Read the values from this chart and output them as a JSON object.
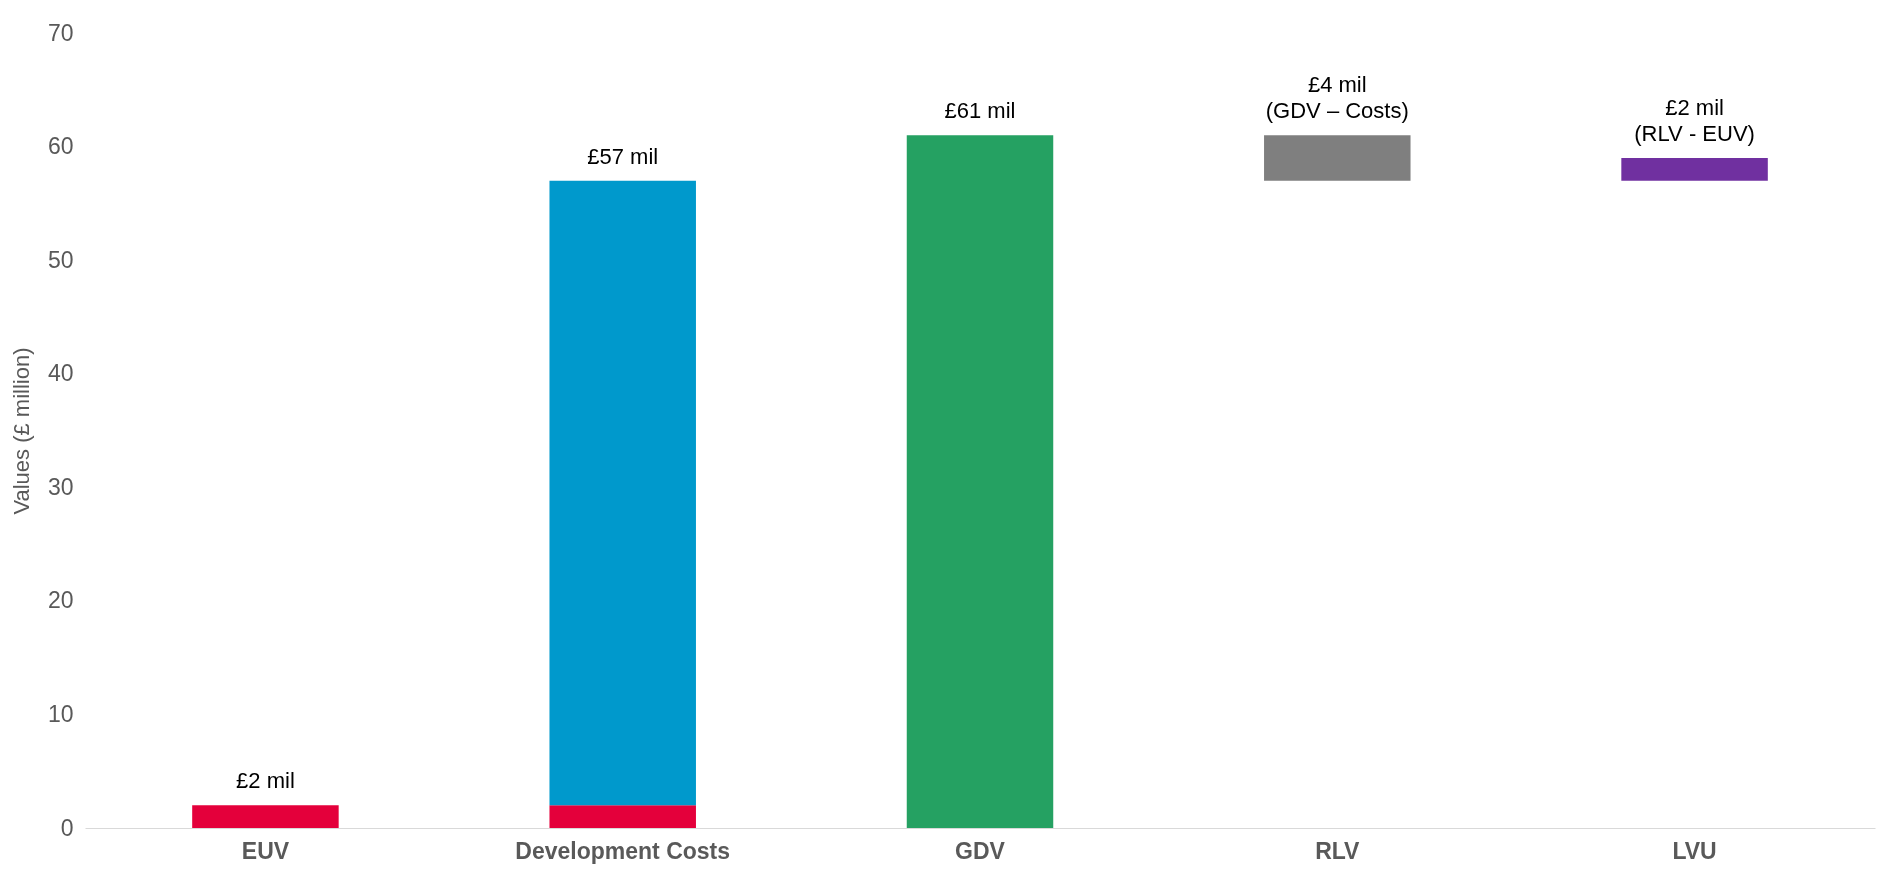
{
  "chart_data": {
    "type": "bar",
    "ylabel": "Values (£ million)",
    "categories": [
      "EUV",
      "Development Costs",
      "GDV",
      "RLV",
      "LVU"
    ],
    "series": [
      {
        "color": "#e4003b",
        "values": [
          2,
          2,
          null,
          null,
          null
        ],
        "base": [
          0,
          0,
          null,
          null,
          null
        ]
      },
      {
        "color": "#0099cc",
        "values": [
          null,
          55,
          null,
          null,
          null
        ],
        "base": [
          null,
          2,
          null,
          null,
          null
        ]
      },
      {
        "color": "#25a162",
        "values": [
          null,
          null,
          61,
          null,
          null
        ],
        "base": [
          null,
          null,
          0,
          null,
          null
        ]
      },
      {
        "color": "#7f7f7f",
        "values": [
          null,
          null,
          null,
          4,
          null
        ],
        "base": [
          null,
          null,
          null,
          57,
          null
        ]
      },
      {
        "color": "#7030a0",
        "values": [
          null,
          null,
          null,
          null,
          2
        ],
        "base": [
          null,
          null,
          null,
          null,
          57
        ]
      }
    ],
    "ylim": [
      0,
      70
    ],
    "yticks": [
      0,
      10,
      20,
      30,
      40,
      50,
      60,
      70
    ],
    "grid": false,
    "annotations": [
      {
        "text": "£2 mil",
        "x": "EUV",
        "y": 2
      },
      {
        "text": "£57 mil",
        "x": "Development Costs",
        "y": 57
      },
      {
        "text": "£61 mil",
        "x": "GDV",
        "y": 61
      },
      {
        "text": "£4 mil\n(GDV – Costs)",
        "x": "RLV",
        "y": 61
      },
      {
        "text": "£2 mil\n(RLV - EUV)",
        "x": "LVU",
        "y": 59
      }
    ]
  }
}
